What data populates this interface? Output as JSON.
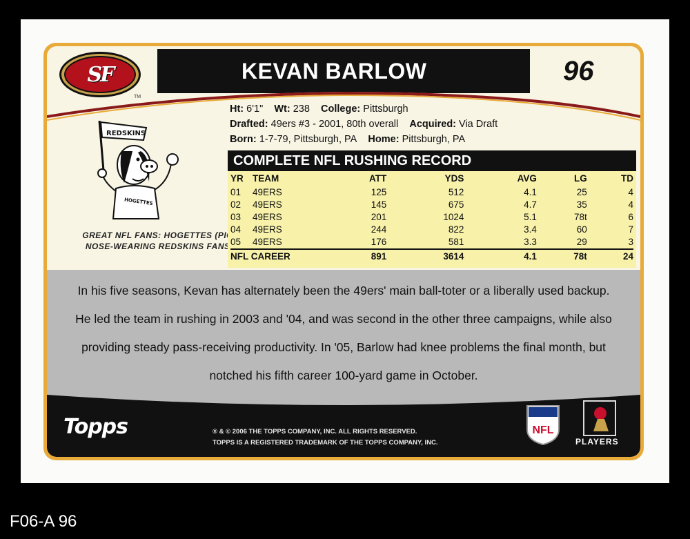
{
  "card": {
    "player_name": "KEVAN BARLOW",
    "card_number": "96",
    "team_logo_text": "SF",
    "trademark": "TM",
    "info": {
      "height_label": "Ht:",
      "height": "6'1\"",
      "weight_label": "Wt:",
      "weight": "238",
      "college_label": "College:",
      "college": "Pittsburgh",
      "drafted_label": "Drafted:",
      "drafted": "49ers #3 - 2001, 80th overall",
      "acquired_label": "Acquired:",
      "acquired": "Via Draft",
      "born_label": "Born:",
      "born": "1-7-79, Pittsburgh, PA",
      "home_label": "Home:",
      "home": "Pittsburgh, PA"
    },
    "cartoon": {
      "flag_text": "REDSKINS",
      "shirt_text": "HOGETTES",
      "caption": "GREAT NFL FANS: HOGETTES (PIG NOSE-WEARING REDSKINS FANS)"
    },
    "record": {
      "title": "COMPLETE NFL RUSHING RECORD",
      "headers": [
        "YR",
        "TEAM",
        "ATT",
        "YDS",
        "AVG",
        "LG",
        "TD"
      ],
      "rows": [
        [
          "01",
          "49ERS",
          "125",
          "512",
          "4.1",
          "25",
          "4"
        ],
        [
          "02",
          "49ERS",
          "145",
          "675",
          "4.7",
          "35",
          "4"
        ],
        [
          "03",
          "49ERS",
          "201",
          "1024",
          "5.1",
          "78t",
          "6"
        ],
        [
          "04",
          "49ERS",
          "244",
          "822",
          "3.4",
          "60",
          "7"
        ],
        [
          "05",
          "49ERS",
          "176",
          "581",
          "3.3",
          "29",
          "3"
        ]
      ],
      "career": [
        "NFL CAREER",
        "891",
        "3614",
        "4.1",
        "78t",
        "24"
      ]
    },
    "bio": "In his five seasons, Kevan has alternately been the 49ers' main ball-toter or a liberally used backup. He led the team in rushing in 2003 and '04, and was second in the other three campaigns, while also providing steady pass-receiving productivity. In '05, Barlow had knee problems the final month, but notched his fifth career 100-yard game in October.",
    "footer": {
      "brand": "Topps",
      "legal_line1": "® & © 2006 THE TOPPS COMPANY, INC.  ALL RIGHTS RESERVED.",
      "legal_line2": "TOPPS IS A REGISTERED TRADEMARK OF THE TOPPS COMPANY, INC.",
      "nfl_logo_text": "NFL",
      "players_text": "PLAYERS"
    }
  },
  "scan_code": "F06-A 96",
  "colors": {
    "card_border": "#e8aa38",
    "card_bg": "#f8f5e4",
    "stats_bg": "#f7f1aa",
    "bio_bg": "#b9b9b9",
    "niners_red": "#b3121d"
  }
}
